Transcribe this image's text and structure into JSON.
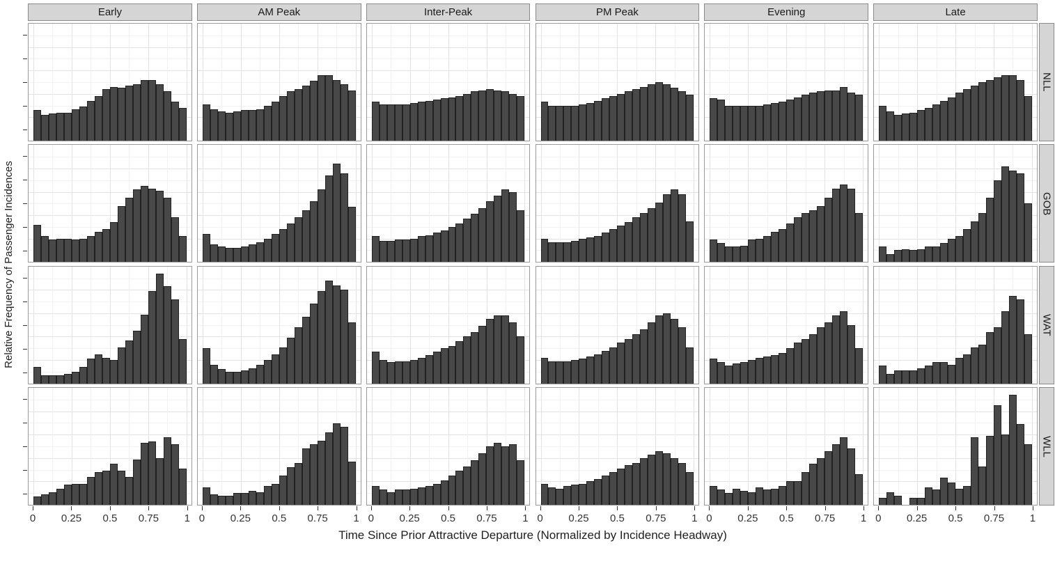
{
  "colors": {
    "bar_fill": "#484848",
    "bar_stroke": "#212121",
    "panel_border": "#9a9a9a",
    "strip_background": "#d5d5d5",
    "strip_border": "#8a8a8a",
    "grid_major": "#e2e2e2",
    "grid_minor": "#f1f1f1",
    "text": "#1f1f1f"
  },
  "chart_data": {
    "type": "bar",
    "subtype": "faceted-histogram",
    "xlabel": "Time Since Prior Attractive Departure (Normalized by Incidence Headway)",
    "ylabel": "Relative Frequency of Passenger Incidences",
    "facet_cols": [
      "Early",
      "AM Peak",
      "Inter-Peak",
      "PM Peak",
      "Evening",
      "Late"
    ],
    "facet_rows": [
      "NLL",
      "GOB",
      "WAT",
      "WLL"
    ],
    "x_tick_labels": [
      "0",
      "0.25",
      "0.5",
      "0.75",
      "1"
    ],
    "x_tick_values": [
      0,
      0.25,
      0.5,
      0.75,
      1
    ],
    "x_range": [
      0,
      1
    ],
    "bins_per_panel": 20,
    "bin_width": 0.05,
    "grid": true,
    "y_axis_numeric_labels_visible": false,
    "value_units": "relative frequency, normalized to each panel height (0-1)",
    "panels": [
      {
        "row": "NLL",
        "col": "Early",
        "values": [
          0.26,
          0.22,
          0.23,
          0.24,
          0.24,
          0.27,
          0.29,
          0.34,
          0.38,
          0.44,
          0.46,
          0.45,
          0.47,
          0.48,
          0.52,
          0.52,
          0.48,
          0.42,
          0.33,
          0.28
        ]
      },
      {
        "row": "NLL",
        "col": "AM Peak",
        "values": [
          0.31,
          0.27,
          0.25,
          0.24,
          0.25,
          0.26,
          0.26,
          0.27,
          0.3,
          0.33,
          0.38,
          0.42,
          0.44,
          0.47,
          0.51,
          0.56,
          0.56,
          0.52,
          0.48,
          0.43
        ]
      },
      {
        "row": "NLL",
        "col": "Inter-Peak",
        "values": [
          0.33,
          0.31,
          0.31,
          0.31,
          0.31,
          0.32,
          0.33,
          0.34,
          0.35,
          0.36,
          0.37,
          0.38,
          0.4,
          0.42,
          0.43,
          0.44,
          0.43,
          0.42,
          0.4,
          0.38
        ]
      },
      {
        "row": "NLL",
        "col": "PM Peak",
        "values": [
          0.33,
          0.3,
          0.3,
          0.3,
          0.3,
          0.31,
          0.32,
          0.34,
          0.36,
          0.38,
          0.4,
          0.42,
          0.44,
          0.46,
          0.48,
          0.5,
          0.48,
          0.45,
          0.42,
          0.39
        ]
      },
      {
        "row": "NLL",
        "col": "Evening",
        "values": [
          0.36,
          0.35,
          0.3,
          0.3,
          0.3,
          0.3,
          0.3,
          0.31,
          0.32,
          0.33,
          0.35,
          0.37,
          0.39,
          0.41,
          0.42,
          0.43,
          0.43,
          0.46,
          0.41,
          0.39
        ]
      },
      {
        "row": "NLL",
        "col": "Late",
        "values": [
          0.3,
          0.25,
          0.22,
          0.23,
          0.24,
          0.26,
          0.28,
          0.31,
          0.34,
          0.37,
          0.41,
          0.44,
          0.47,
          0.5,
          0.52,
          0.54,
          0.56,
          0.56,
          0.52,
          0.38
        ]
      },
      {
        "row": "GOB",
        "col": "Early",
        "values": [
          0.32,
          0.22,
          0.19,
          0.2,
          0.2,
          0.19,
          0.2,
          0.22,
          0.26,
          0.28,
          0.34,
          0.48,
          0.55,
          0.62,
          0.65,
          0.63,
          0.61,
          0.55,
          0.38,
          0.22
        ]
      },
      {
        "row": "GOB",
        "col": "AM Peak",
        "values": [
          0.24,
          0.15,
          0.13,
          0.12,
          0.12,
          0.13,
          0.15,
          0.17,
          0.2,
          0.24,
          0.28,
          0.33,
          0.38,
          0.44,
          0.52,
          0.62,
          0.74,
          0.84,
          0.76,
          0.47
        ]
      },
      {
        "row": "GOB",
        "col": "Inter-Peak",
        "values": [
          0.22,
          0.18,
          0.18,
          0.19,
          0.19,
          0.2,
          0.22,
          0.23,
          0.25,
          0.27,
          0.3,
          0.33,
          0.37,
          0.41,
          0.46,
          0.52,
          0.57,
          0.62,
          0.6,
          0.44
        ]
      },
      {
        "row": "GOB",
        "col": "PM Peak",
        "values": [
          0.2,
          0.17,
          0.17,
          0.17,
          0.18,
          0.2,
          0.21,
          0.22,
          0.25,
          0.28,
          0.31,
          0.34,
          0.38,
          0.42,
          0.46,
          0.51,
          0.58,
          0.62,
          0.58,
          0.35
        ]
      },
      {
        "row": "GOB",
        "col": "Evening",
        "values": [
          0.19,
          0.16,
          0.13,
          0.13,
          0.14,
          0.19,
          0.2,
          0.22,
          0.26,
          0.28,
          0.33,
          0.38,
          0.42,
          0.44,
          0.48,
          0.55,
          0.63,
          0.66,
          0.63,
          0.42
        ]
      },
      {
        "row": "GOB",
        "col": "Late",
        "values": [
          0.13,
          0.07,
          0.1,
          0.11,
          0.1,
          0.11,
          0.13,
          0.13,
          0.16,
          0.2,
          0.22,
          0.28,
          0.35,
          0.42,
          0.55,
          0.7,
          0.82,
          0.78,
          0.76,
          0.5
        ]
      },
      {
        "row": "WAT",
        "col": "Early",
        "values": [
          0.14,
          0.07,
          0.07,
          0.07,
          0.08,
          0.1,
          0.14,
          0.21,
          0.25,
          0.22,
          0.2,
          0.31,
          0.37,
          0.45,
          0.59,
          0.79,
          0.94,
          0.83,
          0.72,
          0.38
        ]
      },
      {
        "row": "WAT",
        "col": "AM Peak",
        "values": [
          0.3,
          0.16,
          0.12,
          0.1,
          0.1,
          0.11,
          0.13,
          0.16,
          0.2,
          0.25,
          0.31,
          0.39,
          0.48,
          0.57,
          0.68,
          0.79,
          0.88,
          0.84,
          0.8,
          0.52
        ]
      },
      {
        "row": "WAT",
        "col": "Inter-Peak",
        "values": [
          0.27,
          0.2,
          0.18,
          0.19,
          0.19,
          0.2,
          0.22,
          0.24,
          0.27,
          0.3,
          0.32,
          0.36,
          0.4,
          0.44,
          0.49,
          0.55,
          0.58,
          0.58,
          0.52,
          0.4
        ]
      },
      {
        "row": "WAT",
        "col": "PM Peak",
        "values": [
          0.22,
          0.19,
          0.19,
          0.19,
          0.2,
          0.21,
          0.23,
          0.25,
          0.28,
          0.31,
          0.35,
          0.38,
          0.42,
          0.46,
          0.52,
          0.58,
          0.6,
          0.55,
          0.48,
          0.31
        ]
      },
      {
        "row": "WAT",
        "col": "Evening",
        "values": [
          0.21,
          0.18,
          0.15,
          0.17,
          0.18,
          0.2,
          0.22,
          0.23,
          0.24,
          0.26,
          0.3,
          0.35,
          0.38,
          0.42,
          0.48,
          0.52,
          0.58,
          0.62,
          0.5,
          0.3
        ]
      },
      {
        "row": "WAT",
        "col": "Late",
        "values": [
          0.15,
          0.08,
          0.11,
          0.11,
          0.11,
          0.13,
          0.15,
          0.18,
          0.18,
          0.16,
          0.22,
          0.25,
          0.31,
          0.33,
          0.44,
          0.48,
          0.62,
          0.75,
          0.72,
          0.42
        ]
      },
      {
        "row": "WLL",
        "col": "Early",
        "values": [
          0.07,
          0.09,
          0.11,
          0.14,
          0.17,
          0.18,
          0.18,
          0.24,
          0.28,
          0.29,
          0.35,
          0.29,
          0.24,
          0.39,
          0.53,
          0.54,
          0.4,
          0.58,
          0.52,
          0.31
        ]
      },
      {
        "row": "WLL",
        "col": "AM Peak",
        "values": [
          0.15,
          0.09,
          0.08,
          0.08,
          0.1,
          0.1,
          0.12,
          0.11,
          0.16,
          0.18,
          0.25,
          0.32,
          0.36,
          0.48,
          0.52,
          0.55,
          0.62,
          0.7,
          0.67,
          0.37
        ]
      },
      {
        "row": "WLL",
        "col": "Inter-Peak",
        "values": [
          0.16,
          0.13,
          0.11,
          0.13,
          0.13,
          0.14,
          0.15,
          0.16,
          0.18,
          0.21,
          0.25,
          0.29,
          0.33,
          0.38,
          0.44,
          0.5,
          0.53,
          0.5,
          0.52,
          0.38
        ]
      },
      {
        "row": "WLL",
        "col": "PM Peak",
        "values": [
          0.18,
          0.15,
          0.14,
          0.16,
          0.17,
          0.18,
          0.2,
          0.22,
          0.25,
          0.28,
          0.31,
          0.34,
          0.36,
          0.4,
          0.43,
          0.46,
          0.44,
          0.4,
          0.36,
          0.28
        ]
      },
      {
        "row": "WLL",
        "col": "Evening",
        "values": [
          0.16,
          0.13,
          0.1,
          0.14,
          0.12,
          0.11,
          0.15,
          0.13,
          0.14,
          0.16,
          0.2,
          0.2,
          0.28,
          0.35,
          0.4,
          0.46,
          0.52,
          0.58,
          0.48,
          0.26
        ]
      },
      {
        "row": "WLL",
        "col": "Late",
        "values": [
          0.06,
          0.11,
          0.08,
          0.0,
          0.06,
          0.06,
          0.15,
          0.13,
          0.23,
          0.19,
          0.14,
          0.16,
          0.58,
          0.33,
          0.59,
          0.85,
          0.6,
          0.94,
          0.69,
          0.52
        ]
      }
    ]
  }
}
